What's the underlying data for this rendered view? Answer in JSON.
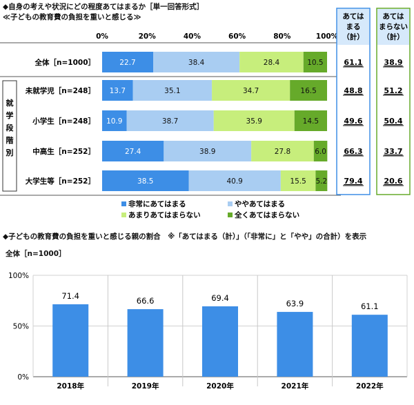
{
  "chart1": {
    "title": "◆自身の考えや状況にどの程度あてはまるか［単一回答形式］",
    "subtitle": "≪子どもの教育費の負担を重いと感じる≫",
    "x_ticks": [
      "0%",
      "20%",
      "40%",
      "60%",
      "80%",
      "100%"
    ],
    "col_header_1": [
      "あては",
      "まる",
      "（計）"
    ],
    "col_header_2": [
      "あては",
      "まらない",
      "（計）"
    ],
    "group_label": "就学段階別",
    "colors": {
      "series1": "#3d8ee6",
      "series2": "#a9cdf2",
      "series3": "#c7ee7c",
      "series4": "#66aa2a",
      "col1_box": "#3d8ee6",
      "col2_box": "#66aa2a",
      "col_header_fill": "#d6e9fb"
    }
  },
  "chart2": {
    "title": "◆子どもの教育費の負担を重いと感じる親の割合　※「あてはまる（計）」（「非常に」と「やや」の合計）を表示",
    "subtitle": "全体［n=1000］",
    "y_ticks": [
      "0%",
      "50%",
      "100%"
    ],
    "bar_color": "#3d8ee6"
  },
  "chart_data": [
    {
      "type": "bar",
      "orientation": "horizontal",
      "stacked": true,
      "categories": [
        "全体［n=1000］",
        "未就学児［n=248］",
        "小学生［n=248］",
        "中高生［n=252］",
        "大学生等［n=252］"
      ],
      "series": [
        {
          "name": "非常にあてはまる",
          "values": [
            22.7,
            13.7,
            10.9,
            27.4,
            38.5
          ]
        },
        {
          "name": "ややあてはまる",
          "values": [
            38.4,
            35.1,
            38.7,
            38.9,
            40.9
          ]
        },
        {
          "name": "あまりあてはまらない",
          "values": [
            28.4,
            34.7,
            35.9,
            27.8,
            15.5
          ]
        },
        {
          "name": "全くあてはまらない",
          "values": [
            10.5,
            16.5,
            14.5,
            6.0,
            5.2
          ]
        }
      ],
      "totals_apply": [
        61.1,
        48.8,
        49.6,
        66.3,
        79.4
      ],
      "totals_not_apply": [
        38.9,
        51.2,
        50.4,
        33.7,
        20.6
      ],
      "xlim": [
        0,
        100
      ],
      "legend": "bottom"
    },
    {
      "type": "bar",
      "categories": [
        "2018年",
        "2019年",
        "2020年",
        "2021年",
        "2022年"
      ],
      "values": [
        71.4,
        66.6,
        69.4,
        63.9,
        61.1
      ],
      "ylim": [
        0,
        100
      ]
    }
  ]
}
